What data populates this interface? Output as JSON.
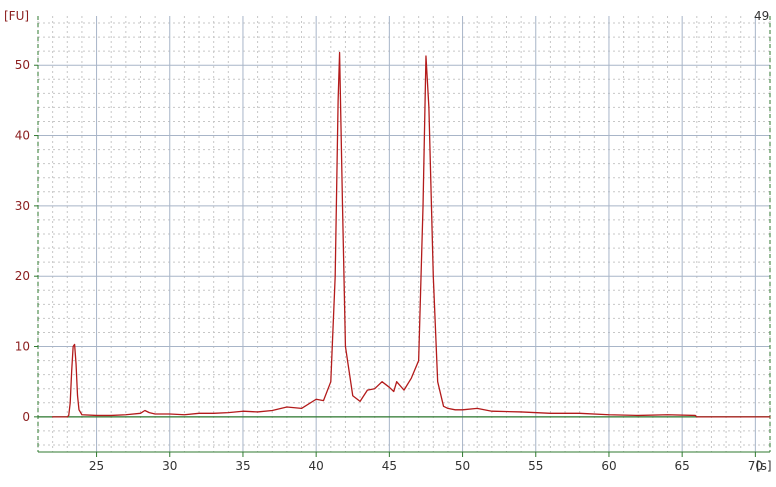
{
  "chart_data": {
    "type": "line",
    "title": "",
    "xlabel": "[s]",
    "ylabel": "[FU]",
    "xlim": [
      21,
      71
    ],
    "ylim": [
      -5,
      57
    ],
    "x_ticks": [
      "25",
      "30",
      "35",
      "40",
      "45",
      "50",
      "55",
      "60",
      "65",
      "70"
    ],
    "x_tick_values": [
      25,
      30,
      35,
      40,
      45,
      50,
      55,
      60,
      65,
      70
    ],
    "y_ticks": [
      "0",
      "10",
      "20",
      "30",
      "40",
      "50"
    ],
    "y_tick_values": [
      0,
      10,
      20,
      30,
      40,
      50
    ],
    "top_right_annotation": "49",
    "grid": true,
    "series": [
      {
        "color": "#b31b1b",
        "points": [
          [
            22.0,
            0.0
          ],
          [
            22.5,
            0.0
          ],
          [
            23.0,
            0.0
          ],
          [
            23.1,
            0.2
          ],
          [
            23.2,
            2.0
          ],
          [
            23.3,
            6.5
          ],
          [
            23.4,
            10.0
          ],
          [
            23.5,
            10.3
          ],
          [
            23.6,
            7.5
          ],
          [
            23.7,
            3.0
          ],
          [
            23.8,
            1.0
          ],
          [
            24.0,
            0.3
          ],
          [
            25.0,
            0.2
          ],
          [
            26.0,
            0.2
          ],
          [
            27.0,
            0.3
          ],
          [
            28.0,
            0.5
          ],
          [
            28.3,
            0.9
          ],
          [
            28.6,
            0.6
          ],
          [
            29.0,
            0.4
          ],
          [
            30.0,
            0.4
          ],
          [
            31.0,
            0.3
          ],
          [
            32.0,
            0.5
          ],
          [
            33.0,
            0.5
          ],
          [
            34.0,
            0.6
          ],
          [
            35.0,
            0.8
          ],
          [
            36.0,
            0.7
          ],
          [
            37.0,
            0.9
          ],
          [
            38.0,
            1.4
          ],
          [
            39.0,
            1.2
          ],
          [
            40.0,
            2.5
          ],
          [
            40.5,
            2.3
          ],
          [
            41.0,
            5.0
          ],
          [
            41.3,
            20.0
          ],
          [
            41.5,
            45.0
          ],
          [
            41.6,
            51.8
          ],
          [
            41.8,
            30.0
          ],
          [
            42.0,
            10.0
          ],
          [
            42.5,
            3.0
          ],
          [
            43.0,
            2.2
          ],
          [
            43.5,
            3.8
          ],
          [
            44.0,
            4.0
          ],
          [
            44.5,
            5.0
          ],
          [
            45.0,
            4.2
          ],
          [
            45.3,
            3.6
          ],
          [
            45.5,
            5.0
          ],
          [
            46.0,
            3.8
          ],
          [
            46.5,
            5.5
          ],
          [
            47.0,
            8.0
          ],
          [
            47.3,
            30.0
          ],
          [
            47.5,
            51.3
          ],
          [
            47.7,
            44.0
          ],
          [
            48.0,
            20.0
          ],
          [
            48.3,
            5.0
          ],
          [
            48.7,
            1.5
          ],
          [
            49.0,
            1.2
          ],
          [
            49.5,
            1.0
          ],
          [
            50.0,
            1.0
          ],
          [
            51.0,
            1.2
          ],
          [
            52.0,
            0.8
          ],
          [
            54.0,
            0.7
          ],
          [
            56.0,
            0.5
          ],
          [
            58.0,
            0.5
          ],
          [
            60.0,
            0.3
          ],
          [
            62.0,
            0.2
          ],
          [
            64.0,
            0.3
          ],
          [
            65.9,
            0.2
          ],
          [
            66.0,
            0.0
          ],
          [
            68.0,
            0.0
          ],
          [
            70.0,
            0.0
          ],
          [
            71.0,
            0.0
          ]
        ]
      }
    ],
    "baseline": 0
  },
  "colors": {
    "background": "#ffffff",
    "grid_major": "#a8b5c8",
    "grid_minor": "#c7c7c7",
    "axis_green": "#2f7a2f",
    "trace": "#b31b1b",
    "label_red": "#8b1e1e",
    "tick_text": "#333333"
  }
}
